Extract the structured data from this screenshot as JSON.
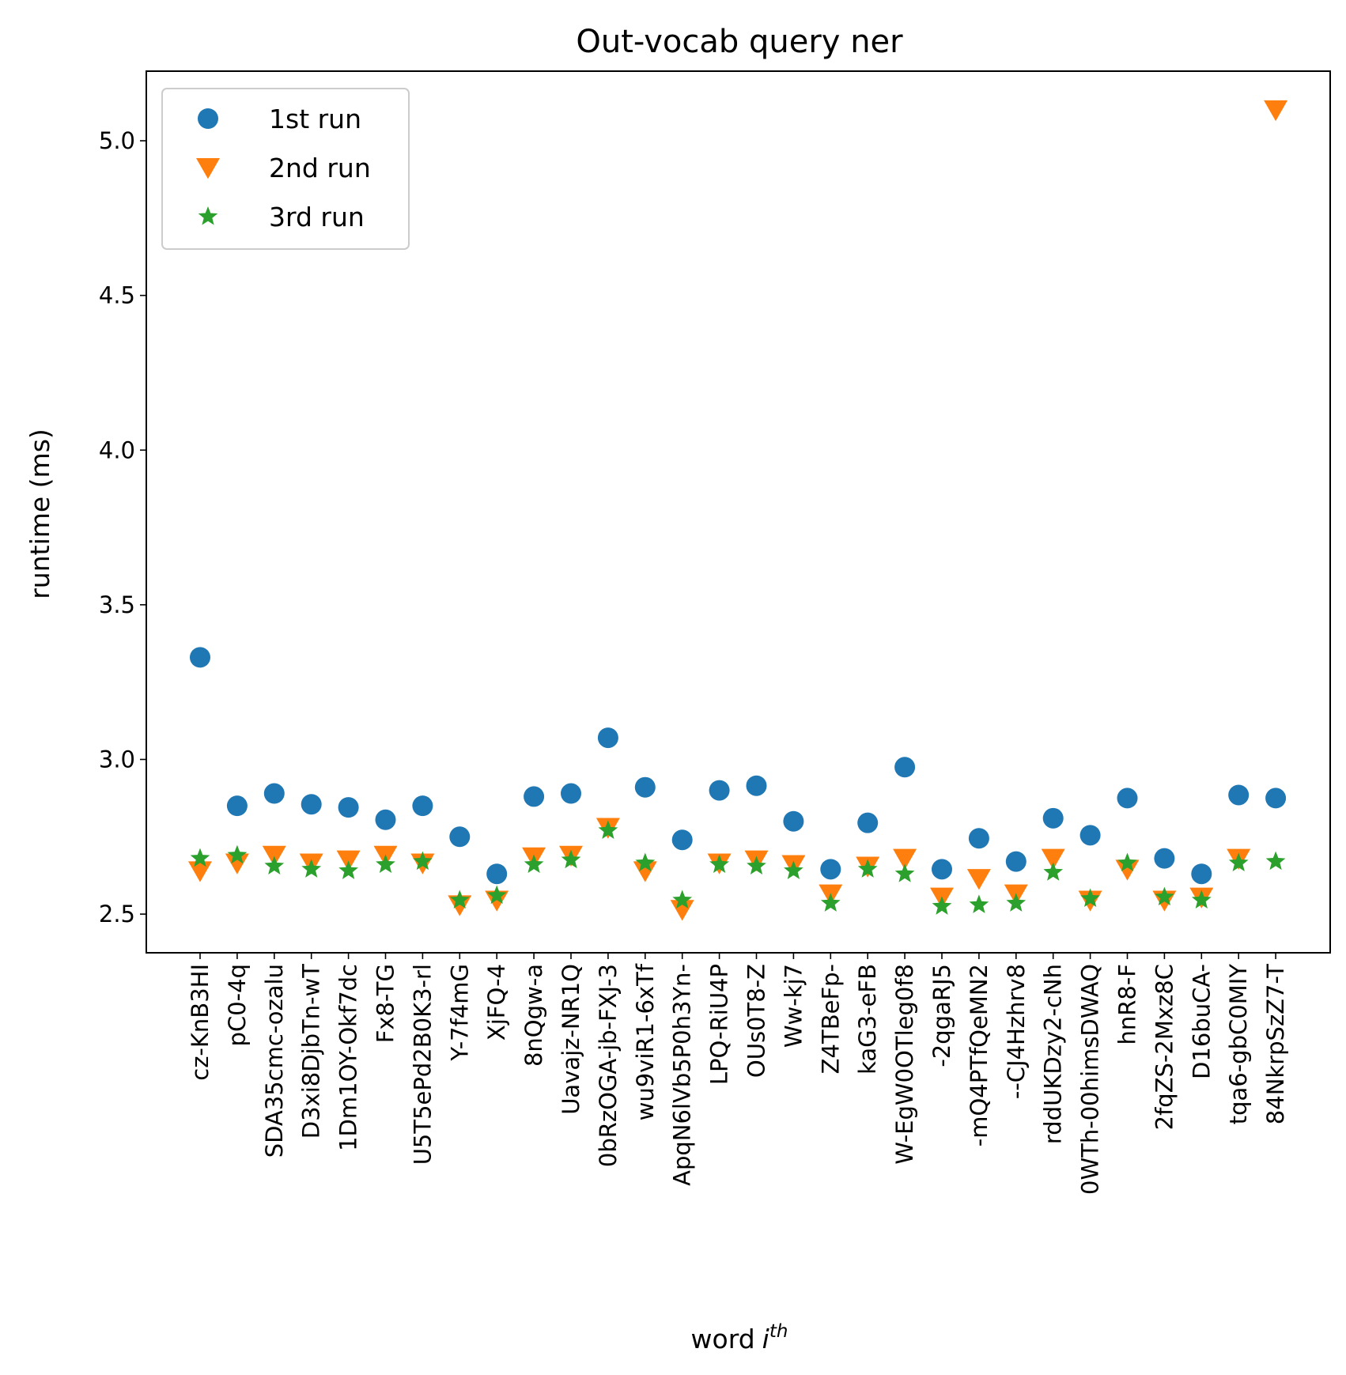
{
  "chart_data": {
    "type": "scatter",
    "title": "Out-vocab query ner",
    "xlabel": "word",
    "xlabel_superscript": "th",
    "xlabel_var": "i",
    "ylabel": "runtime (ms)",
    "ylim": [
      2.375,
      5.225
    ],
    "yticks": [
      "2.5",
      "3.0",
      "3.5",
      "4.0",
      "4.5",
      "5.0"
    ],
    "legend_position": "top-left",
    "grid": false,
    "categories": [
      "cz-KnB3HI",
      "pC0-4q",
      "SDA35cmc-ozalu",
      "D3xi8DjbTn-wT",
      "1Dm1OY-Okf7dc",
      "Fx8-TG",
      "U5T5ePd2B0K3-rl",
      "Y-7f4mG",
      "XjFQ-4",
      "8nQgw-a",
      "Uavajz-NR1Q",
      "0bRzOGA-jb-FXJ-3",
      "wu9viR1-6xTf",
      "ApqN6lVb5P0h3Yn-",
      "LPQ-RiU4P",
      "OUs0T8-Z",
      "Ww-kj7",
      "Z4TBeFp-",
      "kaG3-eFB",
      "W-EgW0OTleg0f8",
      "-2qgaRJ5",
      "-mQ4PTfQeMN2",
      "--CJ4Hzhrv8",
      "rddUKDzy2-cNh",
      "0WTh-00himsDWAQ",
      "hnR8-F",
      "2fqZS-2Mxz8C",
      "D16buCA-",
      "tqa6-gbC0MIY",
      "84NkrpSzZ7-T"
    ],
    "series": [
      {
        "name": "1st run",
        "marker": "circle",
        "color": "#1f77b4",
        "values": [
          3.33,
          2.85,
          2.89,
          2.855,
          2.845,
          2.805,
          2.85,
          2.75,
          2.63,
          2.88,
          2.89,
          3.07,
          2.91,
          2.74,
          2.9,
          2.915,
          2.8,
          2.645,
          2.795,
          2.975,
          2.645,
          2.745,
          2.67,
          2.81,
          2.755,
          2.875,
          2.68,
          2.63,
          2.885,
          2.875
        ]
      },
      {
        "name": "2nd run",
        "marker": "triangle-down",
        "color": "#ff7f0e",
        "values": [
          2.64,
          2.665,
          2.69,
          2.665,
          2.675,
          2.69,
          2.665,
          2.53,
          2.545,
          2.685,
          2.69,
          2.78,
          2.64,
          2.515,
          2.665,
          2.675,
          2.66,
          2.565,
          2.655,
          2.68,
          2.555,
          2.615,
          2.565,
          2.68,
          2.545,
          2.645,
          2.545,
          2.555,
          2.68,
          5.1
        ]
      },
      {
        "name": "3rd run",
        "marker": "star",
        "color": "#2ca02c",
        "values": [
          2.68,
          2.69,
          2.655,
          2.645,
          2.64,
          2.66,
          2.67,
          2.545,
          2.56,
          2.66,
          2.675,
          2.77,
          2.665,
          2.545,
          2.66,
          2.655,
          2.64,
          2.535,
          2.645,
          2.63,
          2.525,
          2.53,
          2.535,
          2.635,
          2.55,
          2.665,
          2.555,
          2.545,
          2.665,
          2.67
        ]
      }
    ]
  }
}
